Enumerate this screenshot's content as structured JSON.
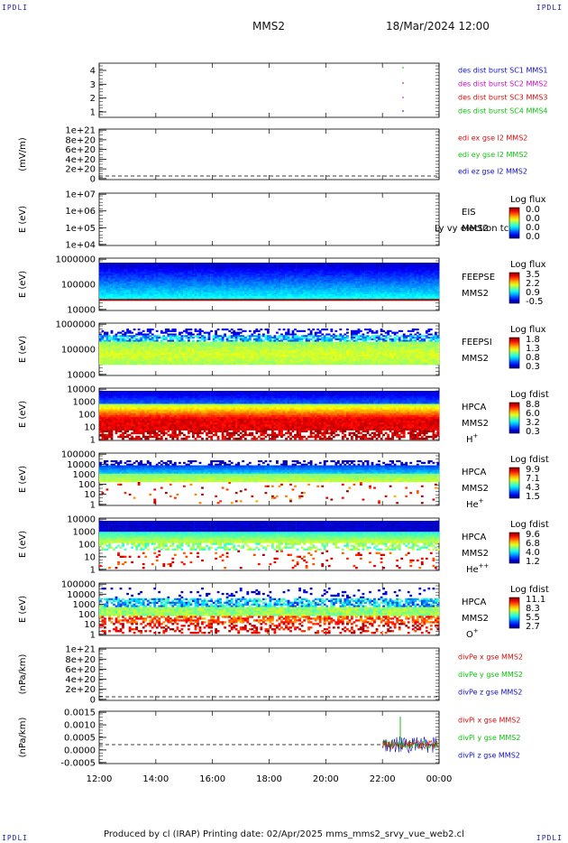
{
  "corner_label": "IPDLI",
  "header": {
    "spacecraft": "MMS2",
    "date_time": "18/Mar/2024 12:00"
  },
  "footer": {
    "text": "Produced by cl (IRAP)   Printing date: 02/Apr/2025   mms_mms2_srvy_vue_web2.cl"
  },
  "time_axis": {
    "labels": [
      "12:00",
      "14:00",
      "16:00",
      "18:00",
      "20:00",
      "22:00",
      "00:00"
    ]
  },
  "colors": {
    "red": "#d01010",
    "green": "#10c010",
    "blue": "#1010c0",
    "magenta": "#c010c0"
  },
  "chart_data": [
    {
      "type": "line",
      "name": "panel-1-burst",
      "ylabel": "",
      "yticks": [
        "1",
        "2",
        "3",
        "4"
      ],
      "legend": [
        {
          "text": "des dist burst SC1 MMS1",
          "color": "#1010c0"
        },
        {
          "text": "des dist burst SC2 MMS2",
          "color": "#c010c0"
        },
        {
          "text": "des dist burst SC3 MMS3",
          "color": "#d01010"
        },
        {
          "text": "des dist burst SC4 MMS4",
          "color": "#10c010"
        }
      ]
    },
    {
      "type": "line",
      "name": "panel-2-edi",
      "ylabel": "(mV/m)",
      "yticks": [
        "0",
        "2e+20",
        "4e+20",
        "6e+20",
        "8e+20",
        "1e+21"
      ],
      "legend": [
        {
          "text": "edi ex gse l2 MMS2",
          "color": "#d01010"
        },
        {
          "text": "edi ey gse l2 MMS2",
          "color": "#10c010"
        },
        {
          "text": "edi ez gse l2 MMS2",
          "color": "#1010c0"
        }
      ]
    },
    {
      "type": "heatmap",
      "name": "panel-3-eis",
      "ylabel": "E (eV)",
      "yticks": [
        "1e+04",
        "1e+05",
        "1e+06",
        "1e+07"
      ],
      "labels": [
        "EIS",
        "MMS2"
      ],
      "overlay": "Ly vy electron tc",
      "cbar_title": "Log flux",
      "cbar_ticks": [
        "0.0",
        "0.0",
        "0.0",
        "0.0"
      ]
    },
    {
      "type": "heatmap",
      "name": "panel-4-feepse",
      "ylabel": "E (eV)",
      "yticks": [
        "10000",
        "100000",
        "1000000"
      ],
      "labels": [
        "FEEPSE",
        "MMS2"
      ],
      "cbar_title": "Log flux",
      "cbar_ticks": [
        "3.5",
        "2.2",
        "0.9",
        "-0.5"
      ]
    },
    {
      "type": "heatmap",
      "name": "panel-5-feepsi",
      "ylabel": "E (eV)",
      "yticks": [
        "10000",
        "100000",
        "1000000"
      ],
      "labels": [
        "FEEPSI",
        "MMS2"
      ],
      "cbar_title": "Log flux",
      "cbar_ticks": [
        "1.8",
        "1.3",
        "0.8",
        "0.3"
      ]
    },
    {
      "type": "heatmap",
      "name": "panel-6-hpca-h",
      "ylabel": "E (eV)",
      "yticks": [
        "1",
        "10",
        "100",
        "1000",
        "10000"
      ],
      "labels": [
        "HPCA",
        "MMS2"
      ],
      "species": "H",
      "species_sup": "+",
      "cbar_title": "Log fdist",
      "cbar_ticks": [
        "8.8",
        "6.0",
        "3.2",
        "0.3"
      ]
    },
    {
      "type": "heatmap",
      "name": "panel-7-hpca-he",
      "ylabel": "E (eV)",
      "yticks": [
        "1",
        "10",
        "100",
        "1000",
        "10000",
        "100000"
      ],
      "labels": [
        "HPCA",
        "MMS2"
      ],
      "species": "He",
      "species_sup": "+",
      "cbar_title": "Log fdist",
      "cbar_ticks": [
        "9.9",
        "7.1",
        "4.3",
        "1.5"
      ]
    },
    {
      "type": "heatmap",
      "name": "panel-8-hpca-hepp",
      "ylabel": "E (eV)",
      "yticks": [
        "1",
        "10",
        "100",
        "1000",
        "10000"
      ],
      "labels": [
        "HPCA",
        "MMS2"
      ],
      "species": "He",
      "species_sup": "++",
      "cbar_title": "Log fdist",
      "cbar_ticks": [
        "9.6",
        "6.8",
        "4.0",
        "1.2"
      ]
    },
    {
      "type": "heatmap",
      "name": "panel-9-hpca-o",
      "ylabel": "E (eV)",
      "yticks": [
        "1",
        "10",
        "100",
        "1000",
        "10000",
        "100000"
      ],
      "labels": [
        "HPCA",
        "MMS2"
      ],
      "species": "O",
      "species_sup": "+",
      "cbar_title": "Log fdist",
      "cbar_ticks": [
        "11.1",
        "8.3",
        "5.5",
        "2.7"
      ]
    },
    {
      "type": "line",
      "name": "panel-10-divpe",
      "ylabel": "(nPa/km)",
      "yticks": [
        "0",
        "2e+20",
        "4e+20",
        "6e+20",
        "8e+20",
        "1e+21"
      ],
      "legend": [
        {
          "text": "divPe x gse MMS2",
          "color": "#d01010"
        },
        {
          "text": "divPe y gse MMS2",
          "color": "#10c010"
        },
        {
          "text": "divPe z gse MMS2",
          "color": "#1010c0"
        }
      ]
    },
    {
      "type": "line",
      "name": "panel-11-divpi",
      "ylabel": "(nPa/km)",
      "yticks": [
        "-0.0005",
        "0.0000",
        "0.0005",
        "0.0010",
        "0.0015"
      ],
      "legend": [
        {
          "text": "divPi x gse MMS2",
          "color": "#d01010"
        },
        {
          "text": "divPi y gse MMS2",
          "color": "#10c010"
        },
        {
          "text": "divPi z gse MMS2",
          "color": "#1010c0"
        }
      ]
    }
  ]
}
